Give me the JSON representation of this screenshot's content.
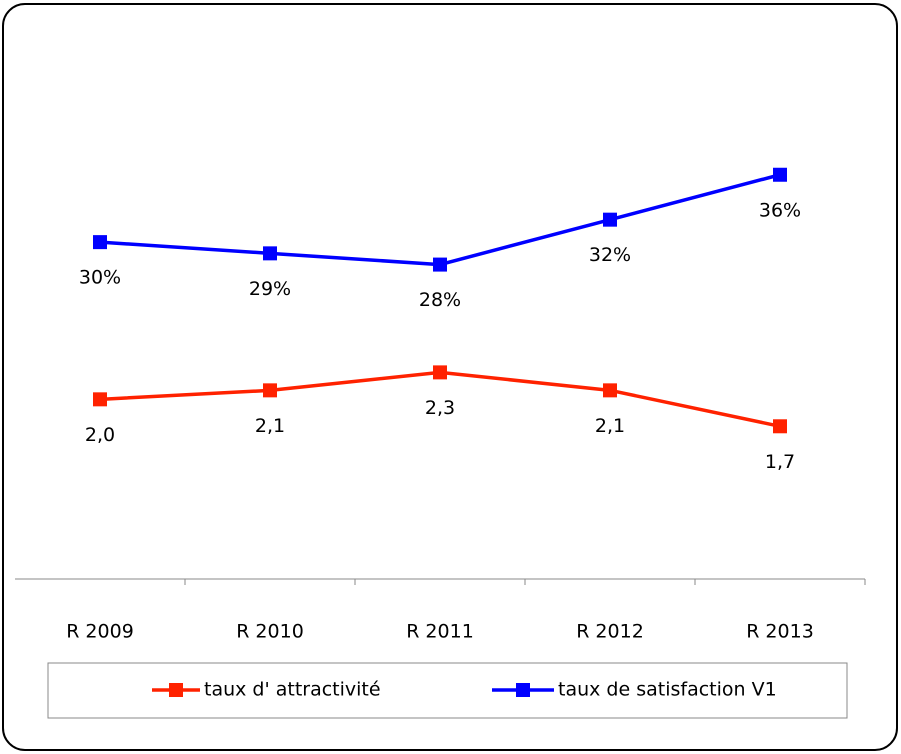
{
  "chart_data": {
    "type": "line",
    "categories": [
      "R 2009",
      "R 2010",
      "R 2011",
      "R 2012",
      "R 2013"
    ],
    "series": [
      {
        "name": "taux d' attractivité",
        "color": "#ff2200",
        "values": [
          2.0,
          2.1,
          2.3,
          2.1,
          1.7
        ],
        "value_labels": [
          "2,0",
          "2,1",
          "2,3",
          "2,1",
          "1,7"
        ]
      },
      {
        "name": "taux de satisfaction V1",
        "color": "#0000ff",
        "axis": "y2",
        "values": [
          30,
          29,
          28,
          32,
          36
        ],
        "value_labels": [
          "30%",
          "29%",
          "28%",
          "32%",
          "36%"
        ]
      }
    ],
    "ylim": [
      0,
      6
    ],
    "y2lim": [
      0,
      48
    ],
    "legend": "bottom"
  }
}
